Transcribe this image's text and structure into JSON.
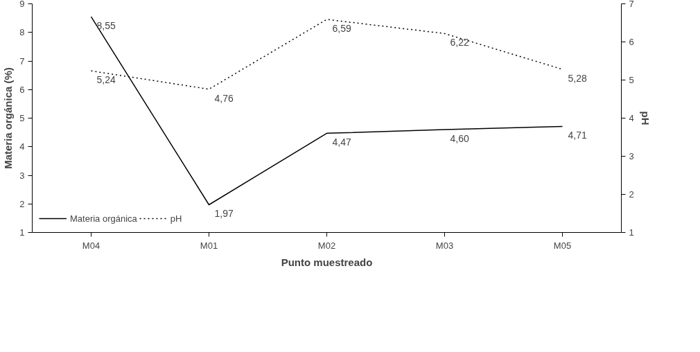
{
  "chart_data": {
    "type": "line",
    "categories": [
      "M04",
      "M01",
      "M02",
      "M03",
      "M05"
    ],
    "xlabel": "Punto muestreado",
    "ylabel": "Materia orgánica (%)",
    "y2label": "pH",
    "ylim": [
      1,
      9
    ],
    "yticks": [
      1,
      2,
      3,
      4,
      5,
      6,
      7,
      8,
      9
    ],
    "y2lim": [
      1,
      7
    ],
    "y2ticks": [
      1,
      2,
      3,
      4,
      5,
      6,
      7
    ],
    "grid": false,
    "legend": "bottom left",
    "marker": "none",
    "series": [
      {
        "name": "Materia orgánica",
        "color": "#000000",
        "line_style": "solid",
        "values": [
          8.55,
          1.97,
          4.47,
          4.6,
          4.71
        ],
        "value_labels": [
          "8,55",
          "1,97",
          "4,47",
          "4,60",
          "4,71"
        ]
      },
      {
        "name": "pH",
        "color": "#000000",
        "line_style": "dotted",
        "axis": "y2",
        "values": [
          5.24,
          4.76,
          6.59,
          6.22,
          5.28
        ],
        "value_labels": [
          "5,24",
          "4,76",
          "6,59",
          "6,22",
          "5,28"
        ]
      }
    ]
  }
}
